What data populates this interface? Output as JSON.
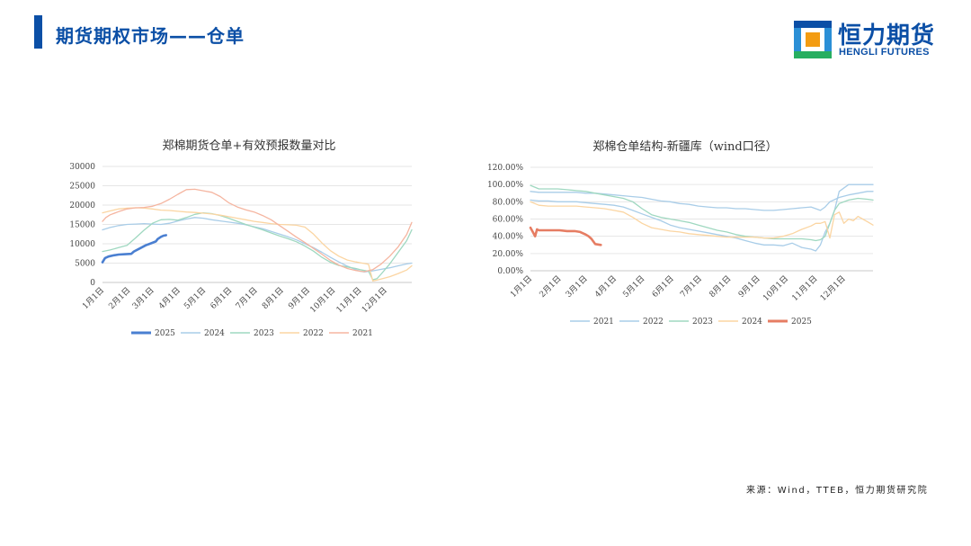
{
  "header": {
    "title": "期货期权市场——仓单"
  },
  "logo": {
    "cn": "恒力期货",
    "en": "HENGLI FUTURES"
  },
  "source": "来源：Wind，TTEB，恒力期货研究院",
  "colors": {
    "brand": "#0b4fa6",
    "logo_orange": "#f39c12",
    "logo_green": "#27ae60",
    "logo_blue": "#2b8fd6"
  },
  "chart_data": [
    {
      "type": "line",
      "title": "郑棉期货仓单+有效预报数量对比",
      "xlabel": "",
      "ylabel": "",
      "ylim": [
        0,
        30000
      ],
      "yticks": [
        "30000",
        "25000",
        "20000",
        "15000",
        "10000",
        "5000",
        "0"
      ],
      "x_domain": [
        1,
        366
      ],
      "xticks": [
        {
          "label": "1月1日",
          "x": 1
        },
        {
          "label": "2月1日",
          "x": 32
        },
        {
          "label": "3月1日",
          "x": 60
        },
        {
          "label": "4月1日",
          "x": 91
        },
        {
          "label": "5月1日",
          "x": 121
        },
        {
          "label": "6月1日",
          "x": 152
        },
        {
          "label": "7月1日",
          "x": 182
        },
        {
          "label": "8月1日",
          "x": 213
        },
        {
          "label": "9月1日",
          "x": 244
        },
        {
          "label": "10月1日",
          "x": 274
        },
        {
          "label": "11月1日",
          "x": 305
        },
        {
          "label": "12月1日",
          "x": 335
        }
      ],
      "grid": true,
      "legend": "bottom",
      "series": [
        {
          "name": "2025",
          "color": "#4a7fd1",
          "width": 2.6,
          "x": [
            1,
            4,
            8,
            14,
            20,
            28,
            35,
            38,
            45,
            52,
            58,
            64,
            66,
            70,
            73,
            76
          ],
          "y": [
            5200,
            6300,
            6700,
            7000,
            7200,
            7300,
            7400,
            8000,
            8800,
            9600,
            10100,
            10600,
            11200,
            11800,
            12100,
            12200
          ]
        },
        {
          "name": "2024",
          "color": "#a9cde8",
          "width": 1.3,
          "x": [
            1,
            10,
            20,
            30,
            40,
            50,
            60,
            70,
            80,
            90,
            100,
            110,
            120,
            130,
            140,
            150,
            160,
            170,
            180,
            190,
            200,
            210,
            220,
            230,
            240,
            250,
            260,
            270,
            280,
            290,
            300,
            305,
            310,
            320,
            330,
            340,
            350,
            360,
            366
          ],
          "y": [
            13600,
            14200,
            14700,
            15000,
            15100,
            15200,
            15100,
            15000,
            15300,
            15900,
            16400,
            16800,
            16600,
            16200,
            15900,
            15600,
            15300,
            14900,
            14400,
            13900,
            13200,
            12500,
            11800,
            11000,
            10000,
            9000,
            7800,
            6500,
            5300,
            4200,
            3300,
            2900,
            2700,
            3000,
            3400,
            3800,
            4300,
            4800,
            5000
          ]
        },
        {
          "name": "2023",
          "color": "#9fd8c0",
          "width": 1.3,
          "x": [
            1,
            10,
            20,
            30,
            40,
            50,
            60,
            70,
            80,
            90,
            100,
            110,
            120,
            130,
            140,
            150,
            160,
            170,
            180,
            190,
            200,
            210,
            220,
            230,
            240,
            250,
            260,
            270,
            280,
            290,
            300,
            305,
            310,
            315,
            320,
            325,
            330,
            340,
            350,
            360,
            366
          ],
          "y": [
            8000,
            8400,
            9000,
            9600,
            11500,
            13500,
            15300,
            16200,
            16300,
            16100,
            16800,
            17600,
            18000,
            17800,
            17300,
            16600,
            15800,
            15000,
            14300,
            13600,
            12800,
            12000,
            11300,
            10500,
            9400,
            8100,
            6500,
            5200,
            4400,
            4000,
            3600,
            3300,
            3100,
            2900,
            700,
            1000,
            2200,
            4800,
            7800,
            10800,
            13600
          ]
        },
        {
          "name": "2022",
          "color": "#fbd5a2",
          "width": 1.3,
          "x": [
            1,
            10,
            20,
            30,
            40,
            50,
            60,
            70,
            80,
            90,
            100,
            110,
            120,
            130,
            140,
            150,
            160,
            170,
            180,
            190,
            200,
            210,
            220,
            230,
            240,
            250,
            260,
            270,
            280,
            290,
            300,
            305,
            310,
            315,
            320,
            325,
            330,
            340,
            350,
            360,
            366
          ],
          "y": [
            18000,
            18500,
            19000,
            19200,
            19300,
            19200,
            19000,
            18700,
            18600,
            18400,
            18200,
            18100,
            17900,
            17700,
            17400,
            17000,
            16600,
            16200,
            15800,
            15500,
            15200,
            15000,
            14900,
            14800,
            14300,
            12500,
            10200,
            8200,
            6800,
            5800,
            5300,
            5100,
            4900,
            4700,
            400,
            600,
            900,
            1500,
            2300,
            3200,
            4300
          ]
        },
        {
          "name": "2021",
          "color": "#f5b5a0",
          "width": 1.3,
          "x": [
            1,
            5,
            10,
            20,
            30,
            40,
            50,
            60,
            70,
            80,
            90,
            100,
            110,
            120,
            130,
            140,
            150,
            160,
            170,
            180,
            190,
            200,
            210,
            220,
            230,
            240,
            250,
            260,
            270,
            280,
            290,
            300,
            305,
            310,
            320,
            330,
            340,
            350,
            360,
            366
          ],
          "y": [
            15800,
            16800,
            17500,
            18300,
            19000,
            19300,
            19400,
            19700,
            20400,
            21500,
            22800,
            24000,
            24100,
            23700,
            23300,
            22200,
            20600,
            19500,
            18800,
            18200,
            17300,
            16200,
            14700,
            13200,
            11700,
            10300,
            8800,
            7300,
            5700,
            4500,
            3600,
            3100,
            2900,
            2800,
            3300,
            4800,
            6800,
            9200,
            12400,
            15500
          ]
        }
      ]
    },
    {
      "type": "line",
      "title": "郑棉仓单结构-新疆库（wind口径）",
      "xlabel": "",
      "ylabel": "",
      "ylim": [
        0,
        120
      ],
      "yticks": [
        "120.00%",
        "100.00%",
        "80.00%",
        "60.00%",
        "40.00%",
        "20.00%",
        "0.00%"
      ],
      "x_domain": [
        1,
        366
      ],
      "xticks": [
        {
          "label": "1月1日",
          "x": 1
        },
        {
          "label": "2月1日",
          "x": 32
        },
        {
          "label": "3月1日",
          "x": 60
        },
        {
          "label": "4月1日",
          "x": 91
        },
        {
          "label": "5月1日",
          "x": 121
        },
        {
          "label": "6月1日",
          "x": 152
        },
        {
          "label": "7月1日",
          "x": 182
        },
        {
          "label": "8月1日",
          "x": 213
        },
        {
          "label": "9月1日",
          "x": 244
        },
        {
          "label": "10月1日",
          "x": 274
        },
        {
          "label": "11月1日",
          "x": 305
        },
        {
          "label": "12月1日",
          "x": 335
        }
      ],
      "grid": true,
      "legend": "bottom",
      "series": [
        {
          "name": "2021",
          "color": "#a9cde8",
          "width": 1.3,
          "x": [
            1,
            10,
            20,
            30,
            40,
            50,
            60,
            70,
            80,
            90,
            100,
            110,
            120,
            130,
            140,
            150,
            160,
            170,
            180,
            190,
            200,
            210,
            220,
            230,
            240,
            250,
            260,
            270,
            280,
            290,
            295,
            300,
            305,
            310,
            315,
            320,
            325,
            330,
            340,
            350,
            360,
            366
          ],
          "y": [
            82,
            81,
            81,
            80,
            80,
            80,
            79,
            78,
            77,
            76,
            74,
            70,
            66,
            62,
            58,
            53,
            50,
            48,
            46,
            44,
            42,
            40,
            38,
            35,
            32,
            30,
            30,
            29,
            32,
            27,
            26,
            25,
            23,
            30,
            45,
            55,
            70,
            92,
            100,
            100,
            100,
            100
          ]
        },
        {
          "name": "2022",
          "color": "#a9cde8",
          "width": 1.3,
          "x": [
            1,
            10,
            20,
            30,
            40,
            50,
            60,
            70,
            80,
            90,
            100,
            110,
            120,
            130,
            140,
            150,
            160,
            170,
            180,
            190,
            200,
            210,
            220,
            230,
            240,
            250,
            260,
            270,
            280,
            290,
            300,
            305,
            310,
            315,
            320,
            330,
            340,
            350,
            360,
            366
          ],
          "y": [
            92,
            91,
            91,
            91,
            91,
            91,
            90,
            90,
            89,
            88,
            87,
            86,
            85,
            83,
            81,
            80,
            78,
            77,
            75,
            74,
            73,
            73,
            72,
            72,
            71,
            70,
            70,
            71,
            72,
            73,
            74,
            72,
            70,
            74,
            80,
            85,
            88,
            90,
            92,
            92
          ]
        },
        {
          "name": "2023",
          "color": "#9fd8c0",
          "width": 1.3,
          "x": [
            1,
            10,
            20,
            30,
            40,
            50,
            60,
            70,
            80,
            90,
            100,
            110,
            120,
            130,
            140,
            150,
            160,
            170,
            180,
            190,
            200,
            210,
            220,
            230,
            240,
            250,
            260,
            270,
            280,
            290,
            300,
            305,
            310,
            315,
            320,
            325,
            330,
            340,
            350,
            360,
            366
          ],
          "y": [
            99,
            95,
            95,
            95,
            94,
            93,
            92,
            90,
            88,
            86,
            84,
            80,
            72,
            65,
            62,
            60,
            58,
            56,
            53,
            50,
            47,
            45,
            42,
            40,
            39,
            38,
            37,
            37,
            37,
            37,
            36,
            35,
            36,
            40,
            55,
            70,
            78,
            82,
            84,
            83,
            82
          ]
        },
        {
          "name": "2024",
          "color": "#fbd5a2",
          "width": 1.3,
          "x": [
            1,
            10,
            20,
            30,
            40,
            50,
            60,
            70,
            80,
            90,
            100,
            110,
            120,
            130,
            140,
            150,
            160,
            170,
            180,
            190,
            200,
            210,
            220,
            230,
            240,
            250,
            260,
            270,
            280,
            290,
            300,
            305,
            310,
            315,
            320,
            325,
            330,
            335,
            340,
            345,
            350,
            355,
            360,
            366
          ],
          "y": [
            80,
            76,
            75,
            75,
            75,
            75,
            74,
            73,
            72,
            70,
            68,
            62,
            55,
            50,
            48,
            46,
            45,
            43,
            42,
            41,
            40,
            39,
            39,
            39,
            39,
            38,
            38,
            40,
            43,
            48,
            52,
            55,
            55,
            57,
            38,
            65,
            68,
            55,
            60,
            58,
            63,
            60,
            57,
            53
          ]
        },
        {
          "name": "2025",
          "color": "#e67d63",
          "width": 2.6,
          "x": [
            1,
            4,
            6,
            8,
            10,
            16,
            24,
            32,
            40,
            48,
            54,
            60,
            63,
            66,
            70,
            76
          ],
          "y": [
            50,
            44,
            40,
            48,
            47,
            47,
            47,
            47,
            46,
            46,
            45,
            42,
            40,
            37,
            31,
            30
          ]
        }
      ]
    }
  ]
}
